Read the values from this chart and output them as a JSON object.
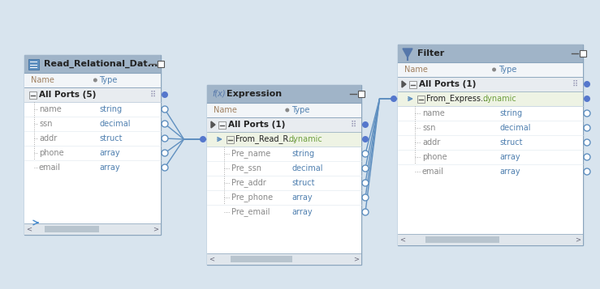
{
  "bg_color": "#d8e4ee",
  "panel_bg": "#ffffff",
  "header_bg": "#a0b4c8",
  "colheader_bg": "#f2f5f8",
  "group_bg": "#e8ecf0",
  "highlight_bg": "#eef3e4",
  "scrollbar_area_bg": "#e0e6ec",
  "scrollbar_thumb_bg": "#b8c4ce",
  "border_color": "#8aa4bc",
  "connector_color": "#6090c0",
  "text_dark": "#222222",
  "text_name_gray": "#888888",
  "text_type_blue": "#5080b0",
  "text_type_green": "#70a040",
  "text_colheader": "#a08060",
  "text_group_bold": "#222222",
  "port_circle_color": "#6090c0",
  "port_fill": "#ffffff",
  "read_panel": {
    "title": "Read_Relational_Dat...",
    "group": "All Ports (5)",
    "rows": [
      [
        "name",
        "string"
      ],
      [
        "ssn",
        "decimal"
      ],
      [
        "addr",
        "struct"
      ],
      [
        "phone",
        "array"
      ],
      [
        "email",
        "array"
      ]
    ]
  },
  "expr_panel": {
    "title": "Expression",
    "group": "All Ports (1)",
    "subgroup": "From_Read_R...",
    "subgroup_type": "dynamic",
    "rows": [
      [
        "Pre_name",
        "string"
      ],
      [
        "Pre_ssn",
        "decimal"
      ],
      [
        "Pre_addr",
        "struct"
      ],
      [
        "Pre_phone",
        "array"
      ],
      [
        "Pre_email",
        "array"
      ]
    ]
  },
  "filter_panel": {
    "title": "Filter",
    "group": "All Ports (1)",
    "subgroup": "From_Express...",
    "subgroup_type": "dynamic",
    "rows": [
      [
        "name",
        "string"
      ],
      [
        "ssn",
        "decimal"
      ],
      [
        "addr",
        "struct"
      ],
      [
        "phone",
        "array"
      ],
      [
        "email",
        "array"
      ]
    ]
  }
}
